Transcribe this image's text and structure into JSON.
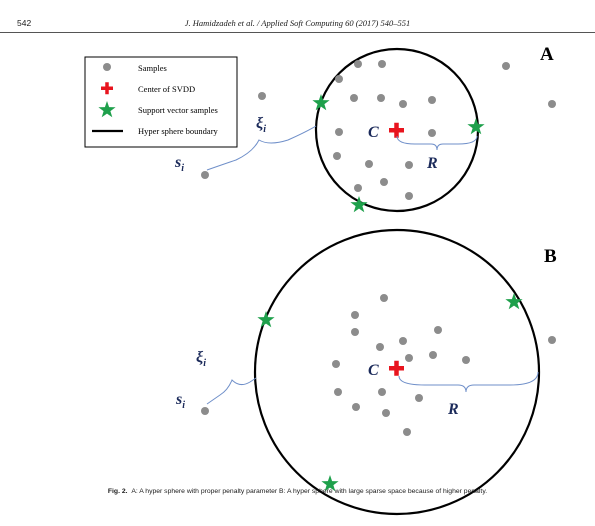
{
  "header": {
    "page_number": "542",
    "running_title": "J. Hamidzadeh et al. / Applied Soft Computing 60 (2017) 540–551"
  },
  "legend": {
    "items": [
      {
        "label": "Samples",
        "symbol": "dot"
      },
      {
        "label": "Center of SVDD",
        "symbol": "cross"
      },
      {
        "label": "Support vector samples",
        "symbol": "star"
      },
      {
        "label": "Hyper sphere boundary",
        "symbol": "line"
      }
    ]
  },
  "panels": [
    {
      "letter": "A",
      "center_label": "C",
      "radius_label": "R",
      "slack_label": "ξ",
      "slack_sub": "i",
      "sample_label": "s",
      "sample_sub": "i"
    },
    {
      "letter": "B",
      "center_label": "C",
      "radius_label": "R",
      "slack_label": "ξ",
      "slack_sub": "i",
      "sample_label": "s",
      "sample_sub": "i"
    }
  ],
  "caption": {
    "label": "Fig. 2.",
    "text": "A: A hyper sphere with proper penalty parameter B: A hyper sphere with large sparse space because of higher penalty."
  },
  "colors": {
    "sample": "#8c8c8c",
    "center": "#e8141e",
    "support": "#1ea04b",
    "boundary": "#000000",
    "brace": "#6f8fc9",
    "label": "#1b2a5a"
  }
}
